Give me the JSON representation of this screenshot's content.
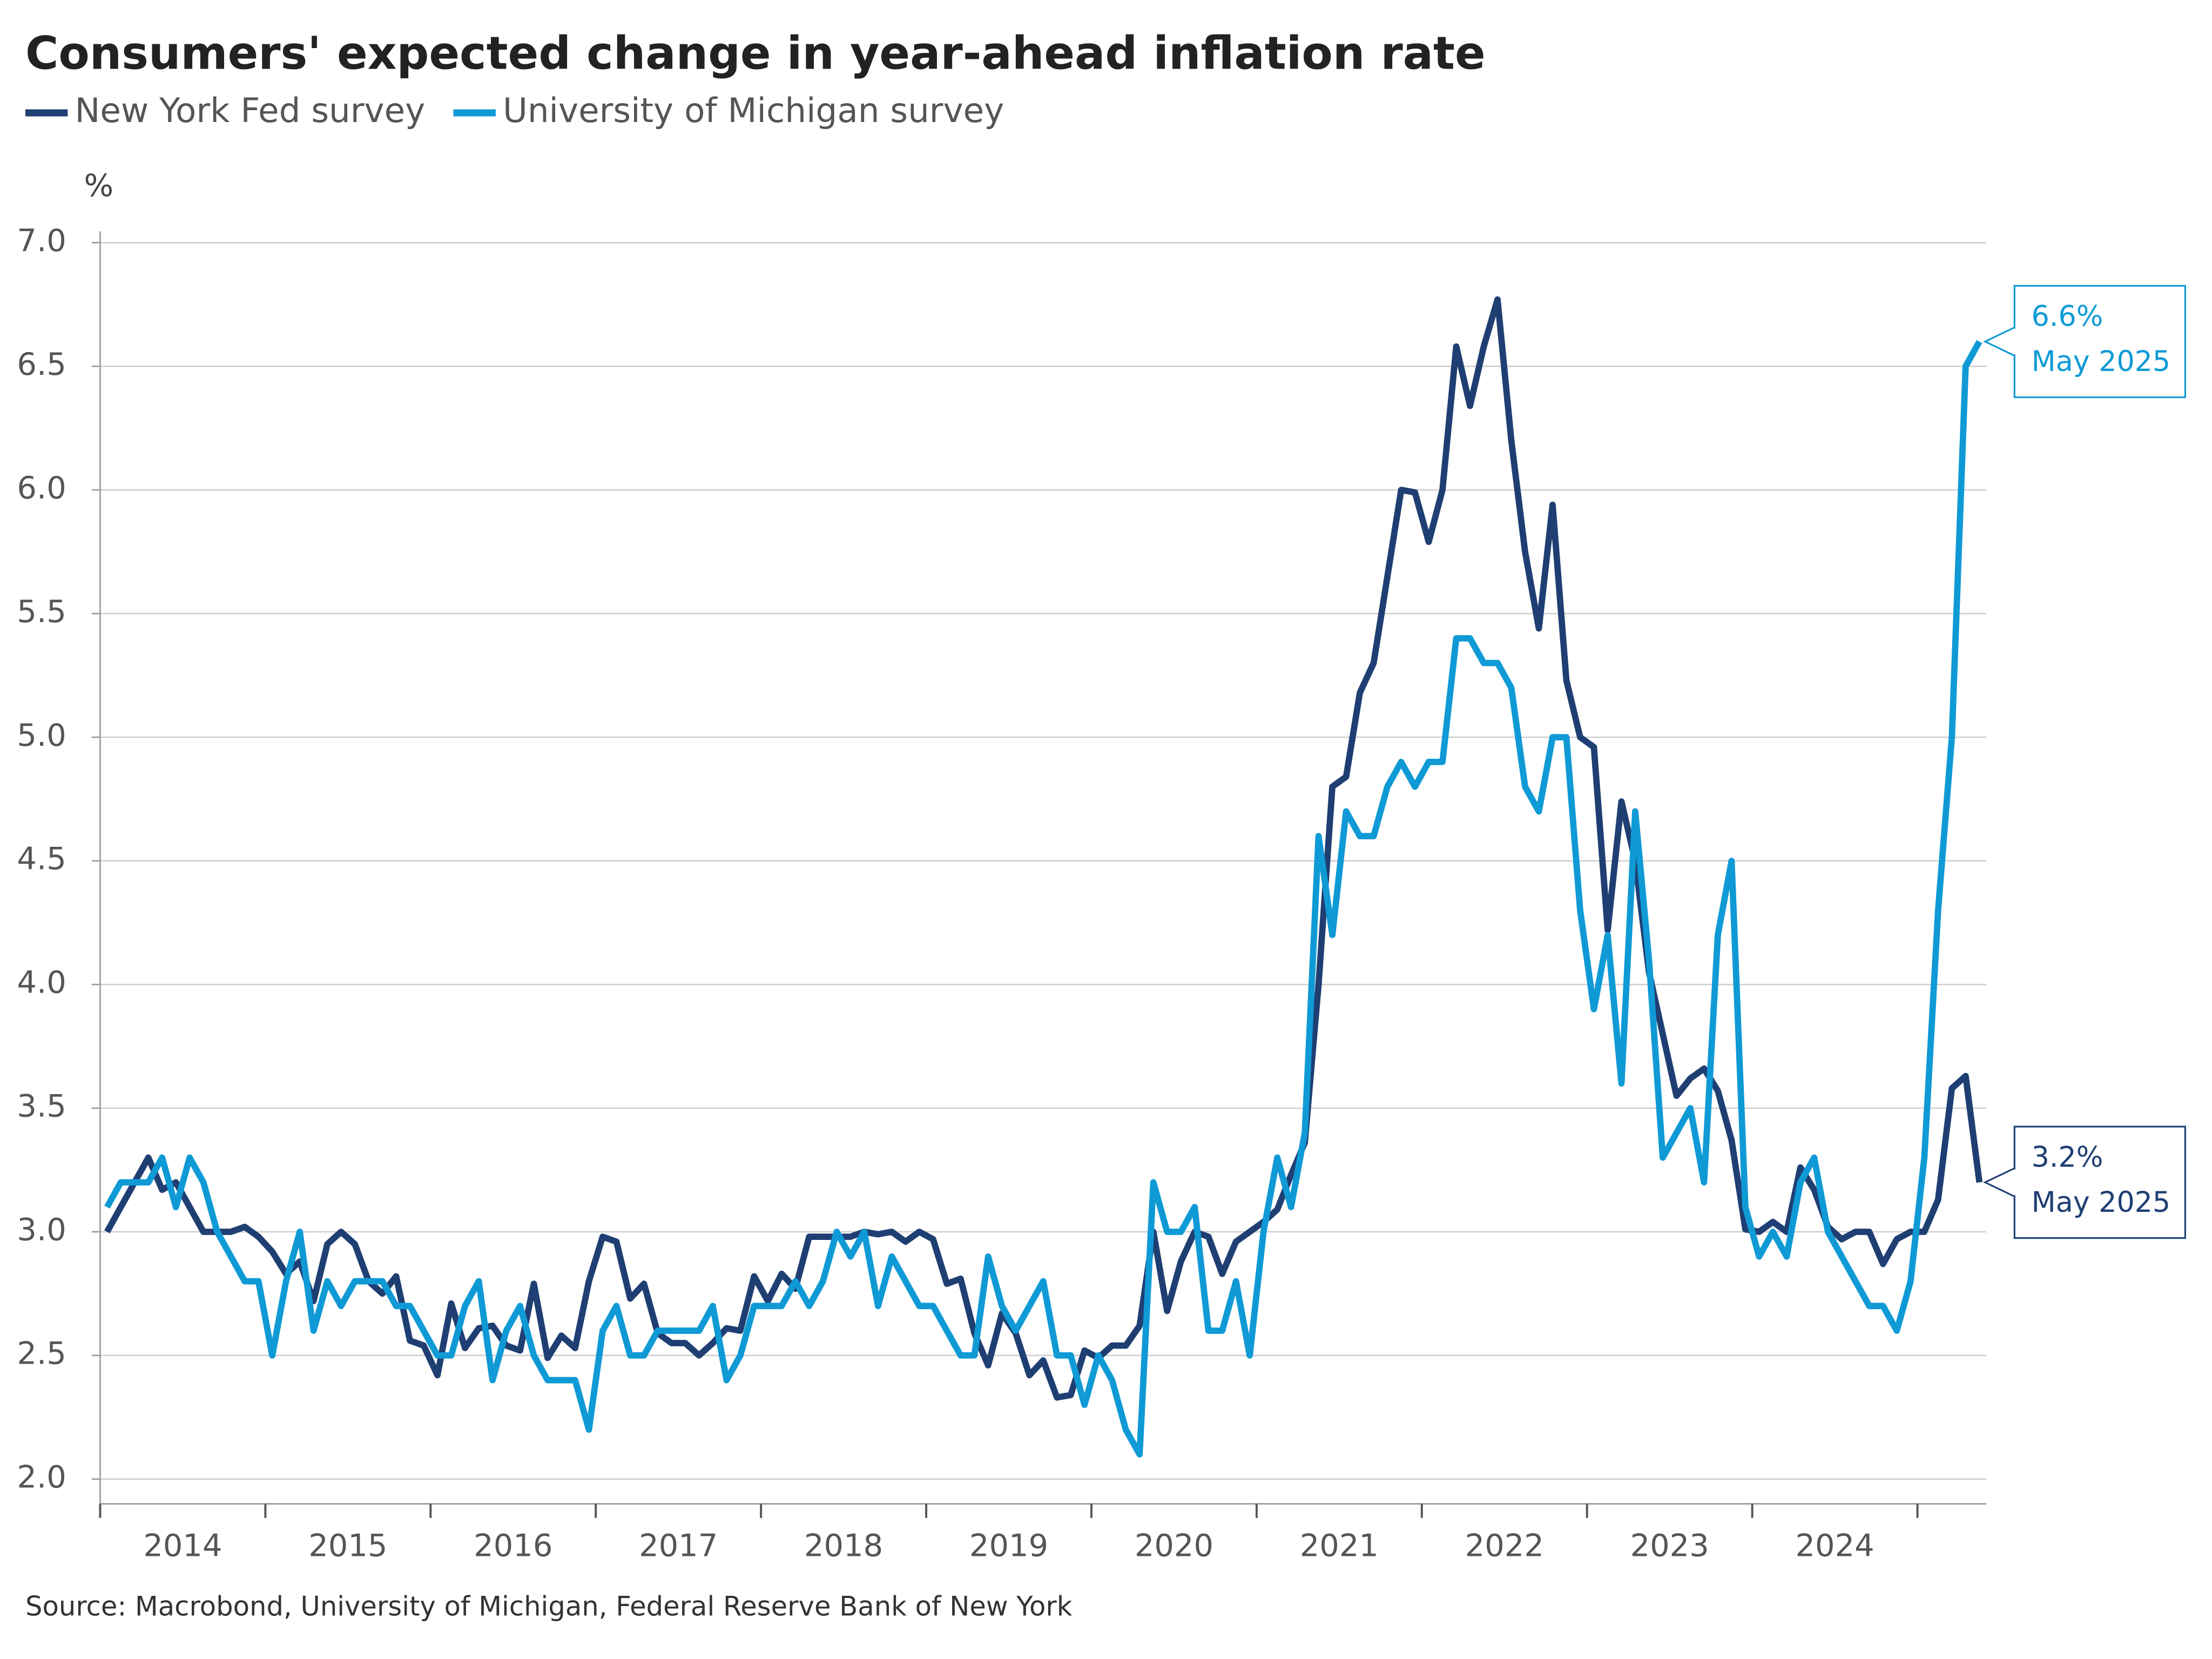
{
  "chart_data": {
    "type": "line",
    "title": "Consumers' expected change in year-ahead inflation rate",
    "y_unit_label": "%",
    "source": "Source: Macrobond, University of Michigan, Federal Reserve Bank of New York",
    "x": [
      "2014-01",
      "2014-02",
      "2014-03",
      "2014-04",
      "2014-05",
      "2014-06",
      "2014-07",
      "2014-08",
      "2014-09",
      "2014-10",
      "2014-11",
      "2014-12",
      "2015-01",
      "2015-02",
      "2015-03",
      "2015-04",
      "2015-05",
      "2015-06",
      "2015-07",
      "2015-08",
      "2015-09",
      "2015-10",
      "2015-11",
      "2015-12",
      "2016-01",
      "2016-02",
      "2016-03",
      "2016-04",
      "2016-05",
      "2016-06",
      "2016-07",
      "2016-08",
      "2016-09",
      "2016-10",
      "2016-11",
      "2016-12",
      "2017-01",
      "2017-02",
      "2017-03",
      "2017-04",
      "2017-05",
      "2017-06",
      "2017-07",
      "2017-08",
      "2017-09",
      "2017-10",
      "2017-11",
      "2017-12",
      "2018-01",
      "2018-02",
      "2018-03",
      "2018-04",
      "2018-05",
      "2018-06",
      "2018-07",
      "2018-08",
      "2018-09",
      "2018-10",
      "2018-11",
      "2018-12",
      "2019-01",
      "2019-02",
      "2019-03",
      "2019-04",
      "2019-05",
      "2019-06",
      "2019-07",
      "2019-08",
      "2019-09",
      "2019-10",
      "2019-11",
      "2019-12",
      "2020-01",
      "2020-02",
      "2020-03",
      "2020-04",
      "2020-05",
      "2020-06",
      "2020-07",
      "2020-08",
      "2020-09",
      "2020-10",
      "2020-11",
      "2020-12",
      "2021-01",
      "2021-02",
      "2021-03",
      "2021-04",
      "2021-05",
      "2021-06",
      "2021-07",
      "2021-08",
      "2021-09",
      "2021-10",
      "2021-11",
      "2021-12",
      "2022-01",
      "2022-02",
      "2022-03",
      "2022-04",
      "2022-05",
      "2022-06",
      "2022-07",
      "2022-08",
      "2022-09",
      "2022-10",
      "2022-11",
      "2022-12",
      "2023-01",
      "2023-02",
      "2023-03",
      "2023-04",
      "2023-05",
      "2023-06",
      "2023-07",
      "2023-08",
      "2023-09",
      "2023-10",
      "2023-11",
      "2023-12",
      "2024-01",
      "2024-02",
      "2024-03",
      "2024-04",
      "2024-05",
      "2024-06",
      "2024-07",
      "2024-08",
      "2024-09",
      "2024-10",
      "2024-11",
      "2024-12",
      "2025-01",
      "2025-02",
      "2025-03",
      "2025-04",
      "2025-05"
    ],
    "series": [
      {
        "name": "New York Fed survey",
        "color": "#1f3f73",
        "values": [
          3.0,
          3.1,
          3.2,
          3.3,
          3.17,
          3.2,
          3.1,
          3.0,
          3.0,
          3.0,
          3.02,
          2.98,
          2.92,
          2.83,
          2.88,
          2.72,
          2.95,
          3.0,
          2.95,
          2.8,
          2.75,
          2.82,
          2.56,
          2.54,
          2.42,
          2.71,
          2.53,
          2.61,
          2.62,
          2.54,
          2.52,
          2.79,
          2.49,
          2.58,
          2.53,
          2.8,
          2.98,
          2.96,
          2.73,
          2.79,
          2.59,
          2.55,
          2.55,
          2.5,
          2.55,
          2.61,
          2.6,
          2.82,
          2.72,
          2.83,
          2.77,
          2.98,
          2.98,
          2.98,
          2.98,
          3.0,
          2.99,
          3.0,
          2.96,
          3.0,
          2.97,
          2.79,
          2.81,
          2.59,
          2.46,
          2.67,
          2.59,
          2.42,
          2.48,
          2.33,
          2.34,
          2.52,
          2.49,
          2.54,
          2.54,
          2.62,
          3.0,
          2.68,
          2.88,
          3.0,
          2.98,
          2.83,
          2.96,
          3.0,
          3.04,
          3.09,
          3.23,
          3.36,
          4.0,
          4.8,
          4.84,
          5.18,
          5.3,
          5.65,
          6.0,
          5.99,
          5.79,
          6.0,
          6.58,
          6.34,
          6.58,
          6.77,
          6.2,
          5.75,
          5.44,
          5.94,
          5.23,
          5.0,
          4.96,
          4.22,
          4.74,
          4.5,
          4.05,
          3.8,
          3.55,
          3.62,
          3.66,
          3.57,
          3.37,
          3.01,
          3.0,
          3.04,
          3.0,
          3.26,
          3.17,
          3.02,
          2.97,
          3.0,
          3.0,
          2.87,
          2.97,
          3.0,
          3.0,
          3.13,
          3.58,
          3.63,
          3.2
        ]
      },
      {
        "name": "University of Michigan survey",
        "color": "#0f9ad6",
        "values": [
          3.1,
          3.2,
          3.2,
          3.2,
          3.3,
          3.1,
          3.3,
          3.2,
          3.0,
          2.9,
          2.8,
          2.8,
          2.5,
          2.8,
          3.0,
          2.6,
          2.8,
          2.7,
          2.8,
          2.8,
          2.8,
          2.7,
          2.7,
          2.6,
          2.5,
          2.5,
          2.7,
          2.8,
          2.4,
          2.6,
          2.7,
          2.5,
          2.4,
          2.4,
          2.4,
          2.2,
          2.6,
          2.7,
          2.5,
          2.5,
          2.6,
          2.6,
          2.6,
          2.6,
          2.7,
          2.4,
          2.5,
          2.7,
          2.7,
          2.7,
          2.8,
          2.7,
          2.8,
          3.0,
          2.9,
          3.0,
          2.7,
          2.9,
          2.8,
          2.7,
          2.7,
          2.6,
          2.5,
          2.5,
          2.9,
          2.7,
          2.6,
          2.7,
          2.8,
          2.5,
          2.5,
          2.3,
          2.5,
          2.4,
          2.2,
          2.1,
          3.2,
          3.0,
          3.0,
          3.1,
          2.6,
          2.6,
          2.8,
          2.5,
          3.0,
          3.3,
          3.1,
          3.4,
          4.6,
          4.2,
          4.7,
          4.6,
          4.6,
          4.8,
          4.9,
          4.8,
          4.9,
          4.9,
          5.4,
          5.4,
          5.3,
          5.3,
          5.2,
          4.8,
          4.7,
          5.0,
          5.0,
          4.3,
          3.9,
          4.2,
          3.6,
          4.7,
          4.1,
          3.3,
          3.4,
          3.5,
          3.2,
          4.2,
          4.5,
          3.1,
          2.9,
          3.0,
          2.9,
          3.2,
          3.3,
          3.0,
          2.9,
          2.8,
          2.7,
          2.7,
          2.6,
          2.8,
          3.3,
          4.3,
          5.0,
          6.5,
          6.6
        ]
      }
    ],
    "xlim": [
      "2014-01",
      "2025-05"
    ],
    "xticks": [
      "2014-01",
      "2015-01",
      "2016-01",
      "2017-01",
      "2018-01",
      "2019-01",
      "2020-01",
      "2021-01",
      "2022-01",
      "2023-01",
      "2024-01",
      "2025-01"
    ],
    "xtick_labels": [
      "2014",
      "2015",
      "2016",
      "2017",
      "2018",
      "2019",
      "2020",
      "2021",
      "2022",
      "2023",
      "2024"
    ],
    "ylim": [
      1.9,
      7.0
    ],
    "yticks": [
      {
        "value": 2,
        "label": "2.0"
      },
      2.5,
      {
        "value": 3,
        "label": "3.0"
      },
      3.5,
      {
        "value": 4,
        "label": "4.0"
      },
      4.5,
      {
        "value": 5,
        "label": "5.0"
      },
      5.5,
      {
        "value": 6,
        "label": "6.0"
      },
      6.5,
      {
        "value": 7,
        "label": "7.0"
      }
    ],
    "grid": true,
    "annotations": [
      {
        "series": 1,
        "value": 6.6,
        "label": "6.6%",
        "date": "May 2025"
      },
      {
        "series": 0,
        "value": 3.2,
        "label": "3.2%",
        "date": "May 2025"
      }
    ]
  }
}
